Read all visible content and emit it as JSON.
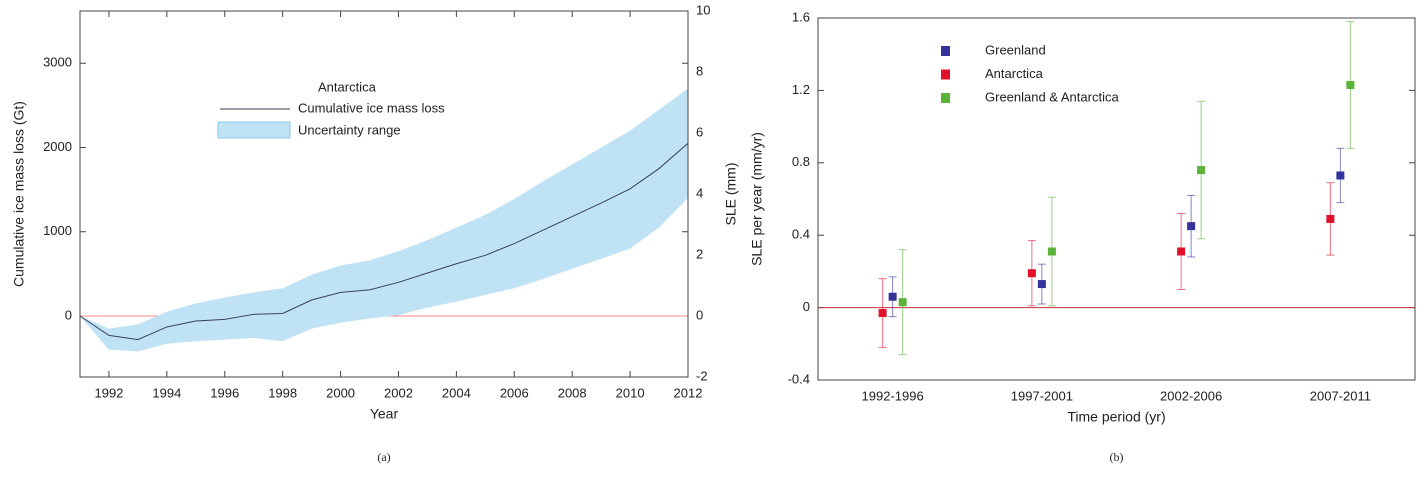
{
  "chart_data": [
    {
      "type": "line",
      "xlabel": "Year",
      "ylabel": "Cumulative ice mass loss (Gt)",
      "y2label": "SLE (mm)",
      "caption": "(a)",
      "legend_title": "Antarctica",
      "x": [
        1991,
        1992,
        1993,
        1994,
        1995,
        1996,
        1997,
        1998,
        1999,
        2000,
        2001,
        2002,
        2003,
        2004,
        2005,
        2006,
        2007,
        2008,
        2009,
        2010,
        2011,
        2012
      ],
      "series": [
        {
          "name": "Cumulative ice mass loss",
          "color": "#3a3f5c",
          "values": [
            0,
            -230,
            -280,
            -130,
            -60,
            -40,
            20,
            30,
            190,
            280,
            310,
            400,
            510,
            620,
            720,
            860,
            1020,
            1180,
            1340,
            1510,
            1750,
            2050
          ]
        }
      ],
      "band": {
        "name": "Uncertainty range",
        "color": "#bfe3f5",
        "lower": [
          0,
          -400,
          -420,
          -330,
          -300,
          -280,
          -260,
          -300,
          -150,
          -80,
          -30,
          10,
          100,
          170,
          250,
          330,
          440,
          560,
          680,
          800,
          1050,
          1400
        ],
        "upper": [
          0,
          -150,
          -100,
          50,
          150,
          220,
          280,
          330,
          490,
          600,
          660,
          770,
          900,
          1050,
          1200,
          1390,
          1600,
          1800,
          2000,
          2200,
          2450,
          2700
        ]
      },
      "hline": {
        "value": 0,
        "color": "#f08a8a"
      },
      "xlim": [
        1991,
        2012
      ],
      "xticks": [
        1992,
        1994,
        1996,
        1998,
        2000,
        2002,
        2004,
        2006,
        2008,
        2010,
        2012
      ],
      "ylim": [
        -724,
        3620
      ],
      "yticks": [
        0,
        1000,
        2000,
        3000
      ],
      "y2lim": [
        -2,
        10
      ],
      "y2ticks": [
        -2,
        0,
        2,
        4,
        6,
        8,
        10
      ]
    },
    {
      "type": "errorbar",
      "xlabel": "Time period (yr)",
      "ylabel": "SLE per year (mm/yr)",
      "caption": "(b)",
      "categories": [
        "1992-1996",
        "1997-2001",
        "2002-2006",
        "2007-2011"
      ],
      "series": [
        {
          "name": "Greenland",
          "color": "#333399",
          "values": [
            0.06,
            0.13,
            0.45,
            0.73
          ],
          "errors": [
            0.11,
            0.11,
            0.17,
            0.15
          ]
        },
        {
          "name": "Antarctica",
          "color": "#e0102a",
          "values": [
            -0.03,
            0.19,
            0.31,
            0.49
          ],
          "errors": [
            0.19,
            0.18,
            0.21,
            0.2
          ]
        },
        {
          "name": "Greenland & Antarctica",
          "color": "#5cb33a",
          "values": [
            0.03,
            0.31,
            0.76,
            1.23
          ],
          "errors": [
            0.29,
            0.3,
            0.38,
            0.35
          ]
        }
      ],
      "hline": {
        "value": 0,
        "color": "#c0303a"
      },
      "ylim": [
        -0.4,
        1.6
      ],
      "yticks": [
        -0.4,
        0,
        0.4,
        0.8,
        1.2,
        1.6
      ]
    }
  ]
}
